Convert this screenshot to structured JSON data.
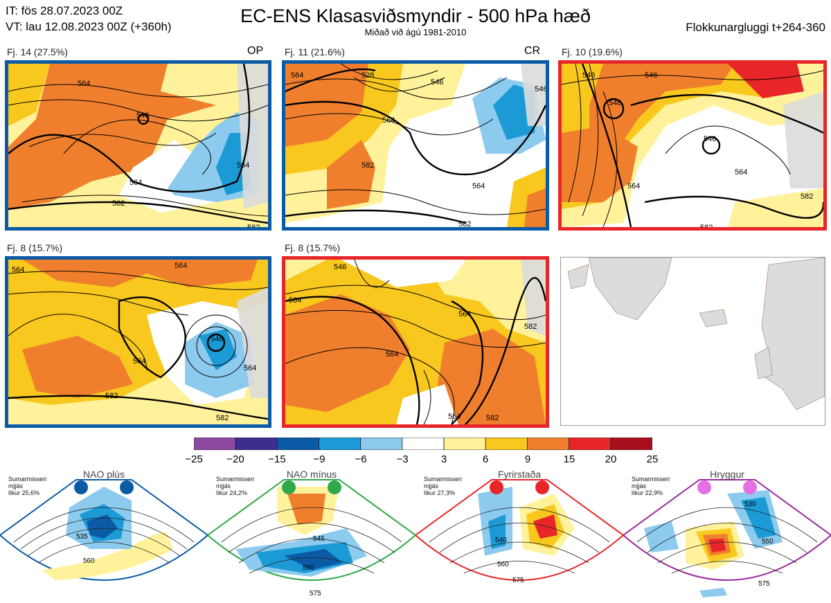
{
  "header": {
    "init": "IT: fös 28.07.2023 00Z",
    "valid": "VT: lau 12.08.2023 00Z  (+360h)",
    "title": "EC-ENS Klasasviðsmyndir - 500 hPa hæð",
    "subtitle": "Miðað við ágú 1981-2010",
    "window": "Flokkunargluggi t+264-360"
  },
  "panels": [
    {
      "label": "Fj. 14 (27.5%)",
      "tag": "OP",
      "frame": "#0b5aa5",
      "contours": [
        "564",
        "546",
        "564",
        "564",
        "582",
        "582"
      ]
    },
    {
      "label": "Fj. 11 (21.6%)",
      "tag": "CR",
      "frame": "#0b5aa5",
      "contours": [
        "564",
        "528",
        "546",
        "546",
        "564",
        "582",
        "564",
        "582"
      ]
    },
    {
      "label": "Fj. 10 (19.6%)",
      "tag": "",
      "frame": "#e8262a",
      "contours": [
        "546",
        "546",
        "546",
        "546",
        "564",
        "564",
        "582",
        "582"
      ]
    },
    {
      "label": "Fj. 8 (15.7%)",
      "tag": "",
      "frame": "#0b5aa5",
      "contours": [
        "564",
        "564",
        "546",
        "564",
        "564",
        "582",
        "582"
      ]
    },
    {
      "label": "Fj. 8 (15.7%)",
      "tag": "",
      "frame": "#e8262a",
      "contours": [
        "546",
        "564",
        "564",
        "564",
        "582",
        "564",
        "582"
      ]
    },
    {
      "label": "",
      "tag": "",
      "frame": "",
      "contours": []
    }
  ],
  "colorbar": {
    "ticks": [
      "−25",
      "−20",
      "−15",
      "−9",
      "−6",
      "−3",
      "3",
      "6",
      "9",
      "15",
      "20",
      "25"
    ],
    "colors": [
      "#8b4aa0",
      "#3d2d8e",
      "#0b5aa5",
      "#1c9ad6",
      "#8ccbee",
      "#ffffff",
      "#fff29a",
      "#f8c81e",
      "#f07f2d",
      "#e8262a",
      "#a80f1c"
    ]
  },
  "regimes": [
    {
      "name": "NAO plús",
      "season": "Sumarmisseri",
      "mid": "mjjás",
      "prob": "líkur 25,6%",
      "color": "#0b5aa5",
      "contours": [
        "535",
        "560"
      ]
    },
    {
      "name": "NAO mínus",
      "season": "Sumarmisseri",
      "mid": "mjjás",
      "prob": "líkur 24,2%",
      "color": "#2ea84a",
      "contours": [
        "545",
        "560",
        "575"
      ]
    },
    {
      "name": "Fyrirstaða",
      "season": "Sumarmisseri",
      "mid": "mjjás",
      "prob": "líkur 27,3%",
      "color": "#e8262a",
      "contours": [
        "540",
        "560",
        "575"
      ]
    },
    {
      "name": "Hryggur",
      "season": "Sumarmisseri",
      "mid": "mjjás",
      "prob": "líkur 22,9%",
      "color": "#9b2a9b",
      "contours": [
        "530",
        "550",
        "575"
      ]
    }
  ]
}
